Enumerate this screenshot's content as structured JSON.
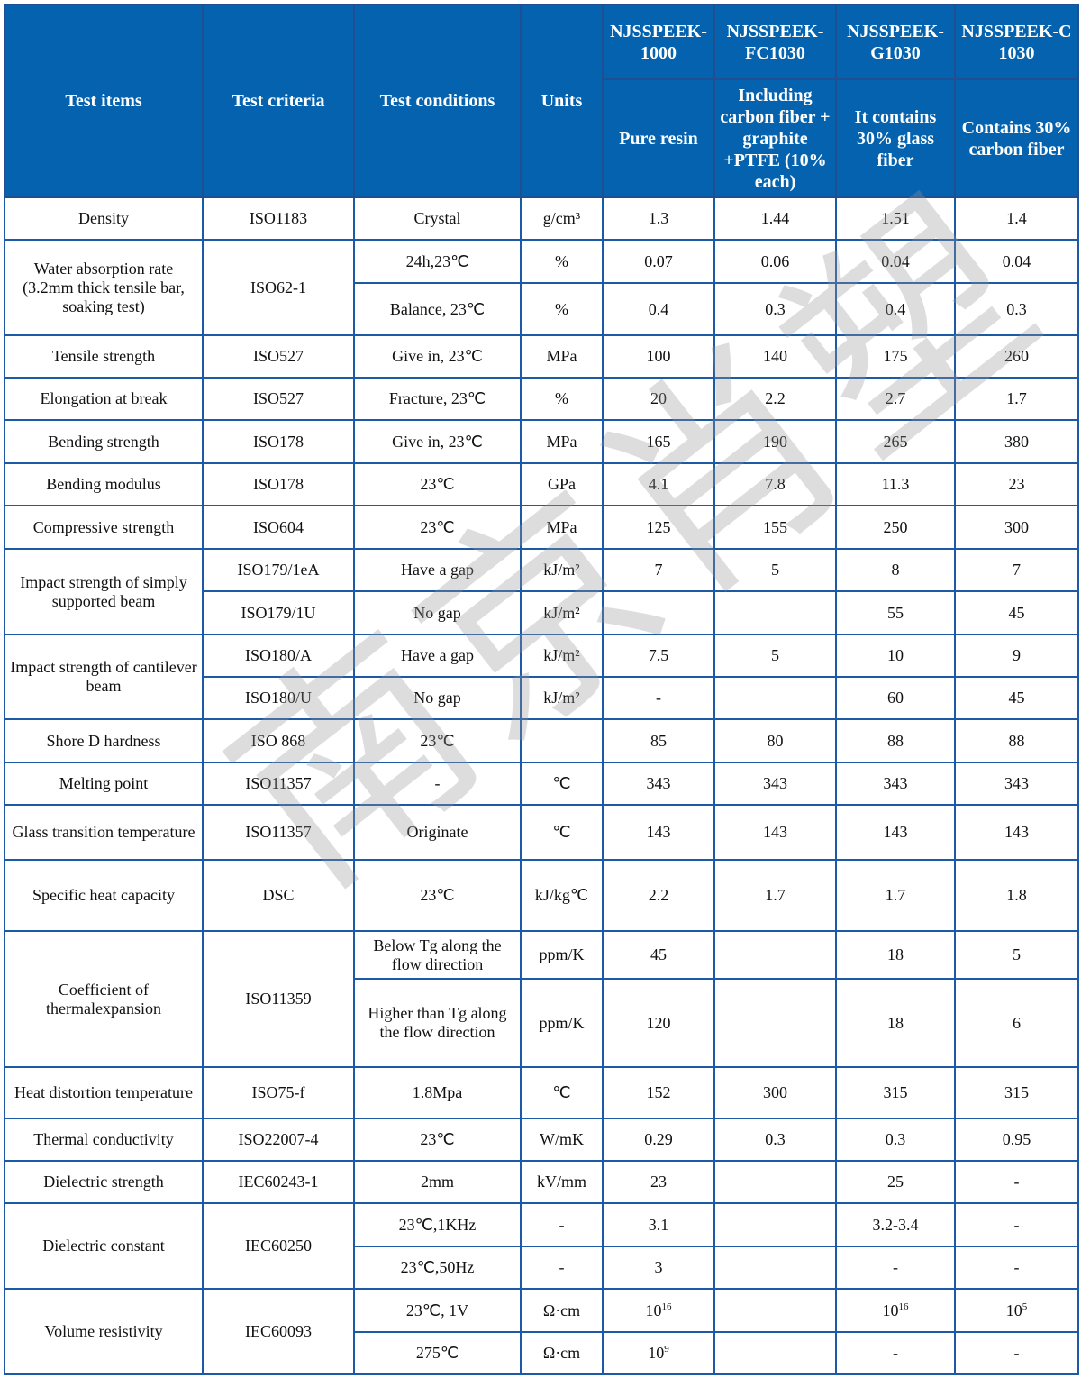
{
  "header": {
    "test_items": "Test items",
    "test_criteria": "Test criteria",
    "test_conditions": "Test conditions",
    "units": "Units",
    "products": [
      {
        "name": "NJSSPEEK-1000",
        "desc": "Pure resin"
      },
      {
        "name": "NJSSPEEK-FC1030",
        "desc": "Including carbon fiber + graphite +PTFE (10% each)"
      },
      {
        "name": "NJSSPEEK-G1030",
        "desc": "It contains 30% glass fiber"
      },
      {
        "name": "NJSSPEEK-C1030",
        "desc": "Contains 30% carbon fiber"
      }
    ]
  },
  "rows": [
    {
      "h": 47,
      "cells": [
        {
          "t": "Density"
        },
        {
          "t": "ISO1183"
        },
        {
          "t": "Crystal"
        },
        {
          "t": "g/cm³"
        },
        {
          "t": "1.3"
        },
        {
          "t": "1.44"
        },
        {
          "t": "1.51"
        },
        {
          "t": "1.4"
        }
      ]
    },
    {
      "h": 48,
      "cells": [
        {
          "t": "Water absorption rate (3.2mm thick tensile bar, soaking test)",
          "r": 2
        },
        {
          "t": "ISO62-1",
          "r": 2
        },
        {
          "t": "24h,23℃"
        },
        {
          "t": "%"
        },
        {
          "t": "0.07"
        },
        {
          "t": "0.06"
        },
        {
          "t": "0.04"
        },
        {
          "t": "0.04"
        }
      ]
    },
    {
      "h": 58,
      "cells": [
        {
          "t": "Balance, 23℃"
        },
        {
          "t": "%"
        },
        {
          "t": "0.4"
        },
        {
          "t": "0.3"
        },
        {
          "t": "0.4"
        },
        {
          "t": "0.3"
        }
      ]
    },
    {
      "h": 47,
      "cells": [
        {
          "t": "Tensile strength"
        },
        {
          "t": "ISO527"
        },
        {
          "t": "Give in, 23℃"
        },
        {
          "t": "MPa"
        },
        {
          "t": "100"
        },
        {
          "t": "140"
        },
        {
          "t": "175"
        },
        {
          "t": "260"
        }
      ]
    },
    {
      "h": 47,
      "cells": [
        {
          "t": "Elongation at break"
        },
        {
          "t": "ISO527"
        },
        {
          "t": "Fracture, 23℃"
        },
        {
          "t": "%"
        },
        {
          "t": "20"
        },
        {
          "t": "2.2"
        },
        {
          "t": "2.7"
        },
        {
          "t": "1.7"
        }
      ]
    },
    {
      "h": 48,
      "cells": [
        {
          "t": "Bending strength"
        },
        {
          "t": "ISO178"
        },
        {
          "t": "Give in, 23℃"
        },
        {
          "t": "MPa"
        },
        {
          "t": "165"
        },
        {
          "t": "190"
        },
        {
          "t": "265"
        },
        {
          "t": "380"
        }
      ]
    },
    {
      "h": 47,
      "cells": [
        {
          "t": "Bending modulus"
        },
        {
          "t": "ISO178"
        },
        {
          "t": "23℃"
        },
        {
          "t": "GPa"
        },
        {
          "t": "4.1"
        },
        {
          "t": "7.8"
        },
        {
          "t": "11.3"
        },
        {
          "t": "23"
        }
      ]
    },
    {
      "h": 48,
      "cells": [
        {
          "t": "Compressive strength"
        },
        {
          "t": "ISO604"
        },
        {
          "t": "23℃"
        },
        {
          "t": "MPa"
        },
        {
          "t": "125"
        },
        {
          "t": "155"
        },
        {
          "t": "250"
        },
        {
          "t": "300"
        }
      ]
    },
    {
      "h": 47,
      "cells": [
        {
          "t": "Impact strength of simply supported beam",
          "r": 2
        },
        {
          "t": "ISO179/1eA"
        },
        {
          "t": "Have a gap"
        },
        {
          "t": "kJ/m²"
        },
        {
          "t": "7"
        },
        {
          "t": "5"
        },
        {
          "t": "8"
        },
        {
          "t": "7"
        }
      ]
    },
    {
      "h": 48,
      "cells": [
        {
          "t": "ISO179/1U"
        },
        {
          "t": "No gap"
        },
        {
          "t": "kJ/m²"
        },
        {
          "t": ""
        },
        {
          "t": ""
        },
        {
          "t": "55"
        },
        {
          "t": "45"
        }
      ]
    },
    {
      "h": 47,
      "cells": [
        {
          "t": "Impact strength of cantilever beam",
          "r": 2
        },
        {
          "t": "ISO180/A"
        },
        {
          "t": "Have a gap"
        },
        {
          "t": "kJ/m²"
        },
        {
          "t": "7.5"
        },
        {
          "t": "5"
        },
        {
          "t": "10"
        },
        {
          "t": "9"
        }
      ]
    },
    {
      "h": 47,
      "cells": [
        {
          "t": "ISO180/U"
        },
        {
          "t": "No gap"
        },
        {
          "t": "kJ/m²"
        },
        {
          "t": "-"
        },
        {
          "t": ""
        },
        {
          "t": "60"
        },
        {
          "t": "45"
        }
      ]
    },
    {
      "h": 48,
      "cells": [
        {
          "t": "Shore D hardness"
        },
        {
          "t": "ISO 868"
        },
        {
          "t": "23℃"
        },
        {
          "t": ""
        },
        {
          "t": "85"
        },
        {
          "t": "80"
        },
        {
          "t": "88"
        },
        {
          "t": "88"
        }
      ]
    },
    {
      "h": 47,
      "cells": [
        {
          "t": "Melting point"
        },
        {
          "t": "ISO11357"
        },
        {
          "t": "-"
        },
        {
          "t": "℃"
        },
        {
          "t": "343"
        },
        {
          "t": "343"
        },
        {
          "t": "343"
        },
        {
          "t": "343"
        }
      ]
    },
    {
      "h": 61,
      "cells": [
        {
          "t": "Glass transition temperature"
        },
        {
          "t": "ISO11357"
        },
        {
          "t": "Originate"
        },
        {
          "t": "℃"
        },
        {
          "t": "143"
        },
        {
          "t": "143"
        },
        {
          "t": "143"
        },
        {
          "t": "143"
        }
      ]
    },
    {
      "h": 79,
      "cells": [
        {
          "t": "Specific heat capacity"
        },
        {
          "t": "DSC"
        },
        {
          "t": "23℃"
        },
        {
          "t": "kJ/kg℃"
        },
        {
          "t": "2.2"
        },
        {
          "t": "1.7"
        },
        {
          "t": "1.7"
        },
        {
          "t": "1.8"
        }
      ]
    },
    {
      "h": 53,
      "cells": [
        {
          "t": "Coefficient of thermalexpansion",
          "r": 2
        },
        {
          "t": "ISO11359",
          "r": 2
        },
        {
          "t": "Below Tg along the flow direction"
        },
        {
          "t": "ppm/K"
        },
        {
          "t": "45"
        },
        {
          "t": ""
        },
        {
          "t": "18"
        },
        {
          "t": "5"
        }
      ]
    },
    {
      "h": 98,
      "cells": [
        {
          "t": "Higher than Tg along the flow direction"
        },
        {
          "t": "ppm/K"
        },
        {
          "t": "120"
        },
        {
          "t": ""
        },
        {
          "t": "18"
        },
        {
          "t": "6"
        }
      ]
    },
    {
      "h": 57,
      "cells": [
        {
          "t": "Heat distortion temperature"
        },
        {
          "t": "ISO75-f"
        },
        {
          "t": "1.8Mpa"
        },
        {
          "t": "℃"
        },
        {
          "t": "152"
        },
        {
          "t": "300"
        },
        {
          "t": "315"
        },
        {
          "t": "315"
        }
      ]
    },
    {
      "h": 47,
      "cells": [
        {
          "t": "Thermal conductivity"
        },
        {
          "t": "ISO22007-4"
        },
        {
          "t": "23℃"
        },
        {
          "t": "W/mK"
        },
        {
          "t": "0.29"
        },
        {
          "t": "0.3"
        },
        {
          "t": "0.3"
        },
        {
          "t": "0.95"
        }
      ]
    },
    {
      "h": 47,
      "cells": [
        {
          "t": "Dielectric strength"
        },
        {
          "t": "IEC60243-1"
        },
        {
          "t": "2mm"
        },
        {
          "t": "kV/mm"
        },
        {
          "t": "23"
        },
        {
          "t": ""
        },
        {
          "t": "25"
        },
        {
          "t": "-"
        }
      ]
    },
    {
      "h": 48,
      "cells": [
        {
          "t": "Dielectric constant",
          "r": 2
        },
        {
          "t": "IEC60250",
          "r": 2
        },
        {
          "t": "23℃,1KHz"
        },
        {
          "t": "-"
        },
        {
          "t": "3.1"
        },
        {
          "t": ""
        },
        {
          "t": "3.2-3.4"
        },
        {
          "t": "-"
        }
      ]
    },
    {
      "h": 47,
      "cells": [
        {
          "t": "23℃,50Hz"
        },
        {
          "t": "-"
        },
        {
          "t": "3"
        },
        {
          "t": ""
        },
        {
          "t": "-"
        },
        {
          "t": "-"
        }
      ]
    },
    {
      "h": 48,
      "cells": [
        {
          "t": "Volume resistivity",
          "r": 2
        },
        {
          "t": "IEC60093",
          "r": 2
        },
        {
          "t": "23℃, 1V"
        },
        {
          "t": "Ω·cm"
        },
        {
          "t": "10",
          "sup": "16"
        },
        {
          "t": ""
        },
        {
          "t": "10",
          "sup": "16"
        },
        {
          "t": "10",
          "sup": "5"
        }
      ]
    },
    {
      "h": 47,
      "cells": [
        {
          "t": "275℃"
        },
        {
          "t": "Ω·cm"
        },
        {
          "t": "10",
          "sup": "9"
        },
        {
          "t": ""
        },
        {
          "t": "-"
        },
        {
          "t": "-"
        }
      ]
    }
  ],
  "watermark": "南京肖塑",
  "colors": {
    "header_bg": "#0462ae",
    "border": "#1d5aa6",
    "header_text": "#ffffff"
  }
}
